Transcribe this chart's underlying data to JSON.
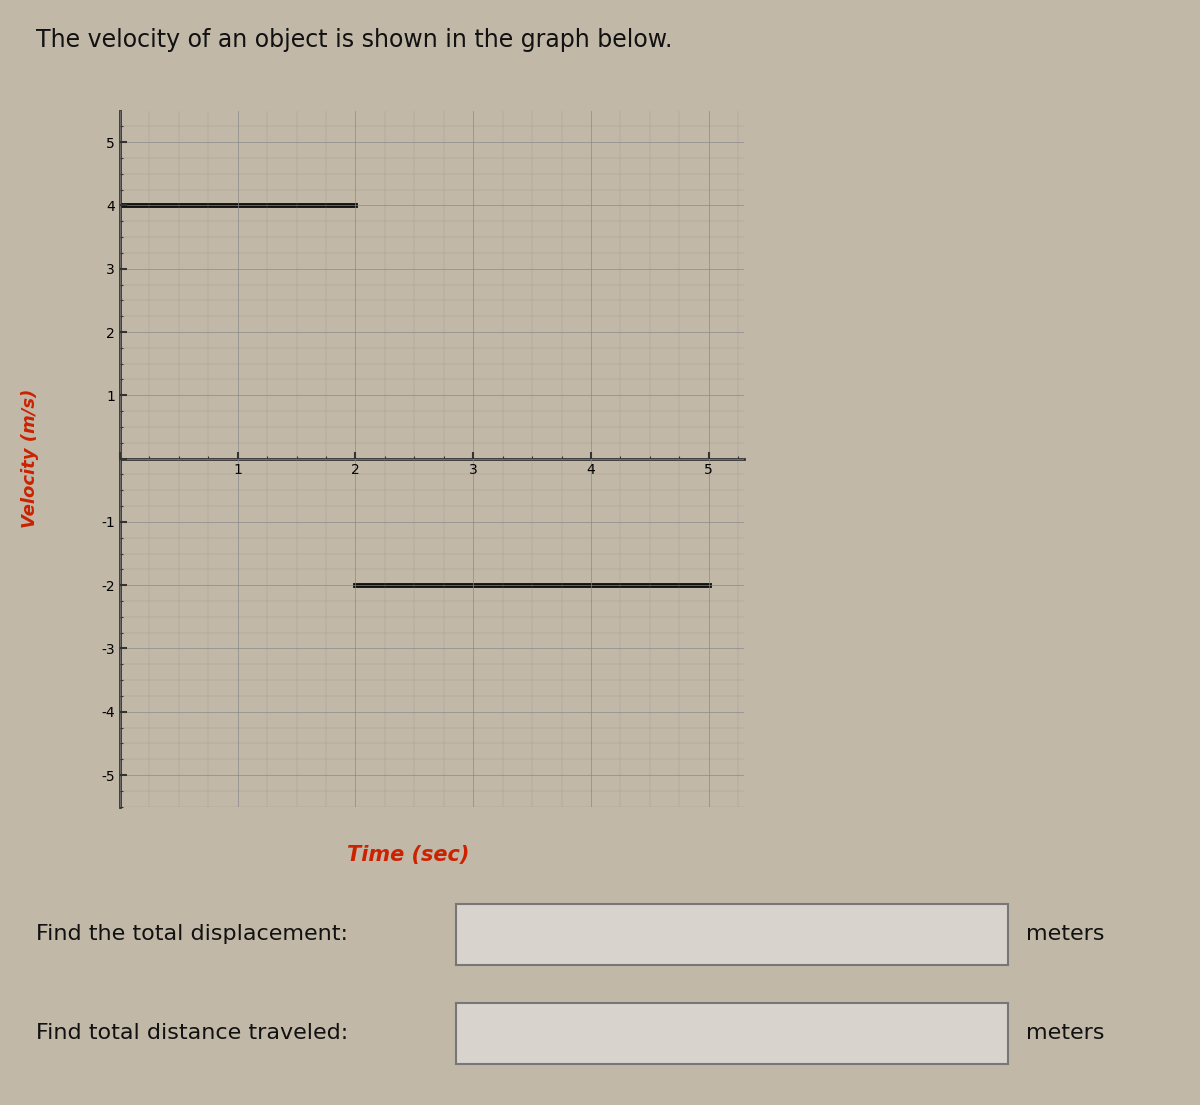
{
  "title": "The velocity of an object is shown in the graph below.",
  "title_fontsize": 17,
  "title_color": "#111111",
  "title_fontweight": "normal",
  "xlabel": "Time (sec)",
  "xlabel_color": "#cc2200",
  "xlabel_fontsize": 15,
  "ylabel": "Velocity (m/s)",
  "ylabel_color": "#cc2200",
  "ylabel_fontsize": 13,
  "xlim": [
    0,
    5.3
  ],
  "ylim": [
    -5.5,
    5.5
  ],
  "xticks": [
    1,
    2,
    3,
    4,
    5
  ],
  "yticks": [
    -5,
    -4,
    -3,
    -2,
    -1,
    1,
    2,
    3,
    4,
    5
  ],
  "line1_x": [
    0,
    2
  ],
  "line1_y": [
    4,
    4
  ],
  "line2_x": [
    2,
    5
  ],
  "line2_y": [
    -2,
    -2
  ],
  "line_color": "#111111",
  "line_width": 3.5,
  "grid_color": "#888888",
  "grid_linewidth": 0.6,
  "background_color": "#c2b8a8",
  "axes_background": "#c2b8a8",
  "fig_background": "#c2b8a8",
  "text_displacement": "Find the total displacement:",
  "text_distance": "Find total distance traveled:",
  "text_meters": "meters",
  "text_fontsize": 16,
  "box_facecolor": "#d8d3cc",
  "box_edgecolor": "#777777",
  "spine_color": "#333333",
  "spine_linewidth": 2.0,
  "tick_fontsize": 14,
  "tick_color": "#222222"
}
